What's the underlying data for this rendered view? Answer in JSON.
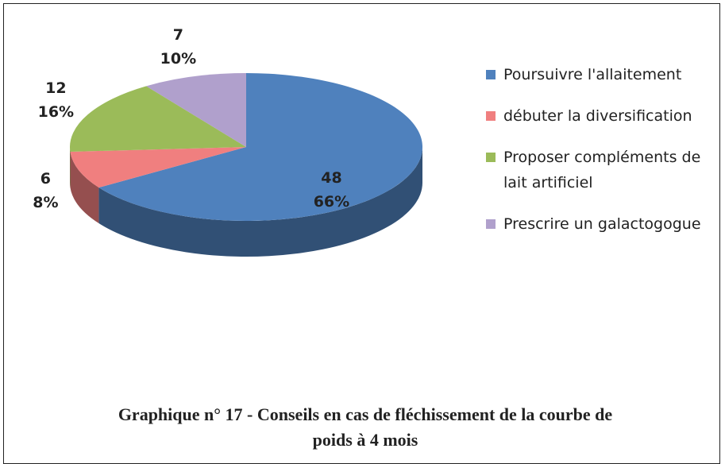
{
  "chart_data": {
    "type": "pie",
    "title": "Graphique n° 17 - Conseils en cas de fléchissement de la courbe de poids à 4 mois",
    "categories": [
      "Poursuivre l'allaitement",
      "débuter la diversification",
      "Proposer compléments de lait artificiel",
      "Prescrire un galactogogue"
    ],
    "values": [
      48,
      6,
      12,
      7
    ],
    "percentages": [
      66,
      8,
      16,
      10
    ],
    "percentage_labels": [
      "66%",
      "8%",
      "16%",
      "10%"
    ],
    "colors": [
      "#4f81bd",
      "#f07f7f",
      "#9bbb59",
      "#b0a0cc"
    ],
    "legend": "right"
  }
}
